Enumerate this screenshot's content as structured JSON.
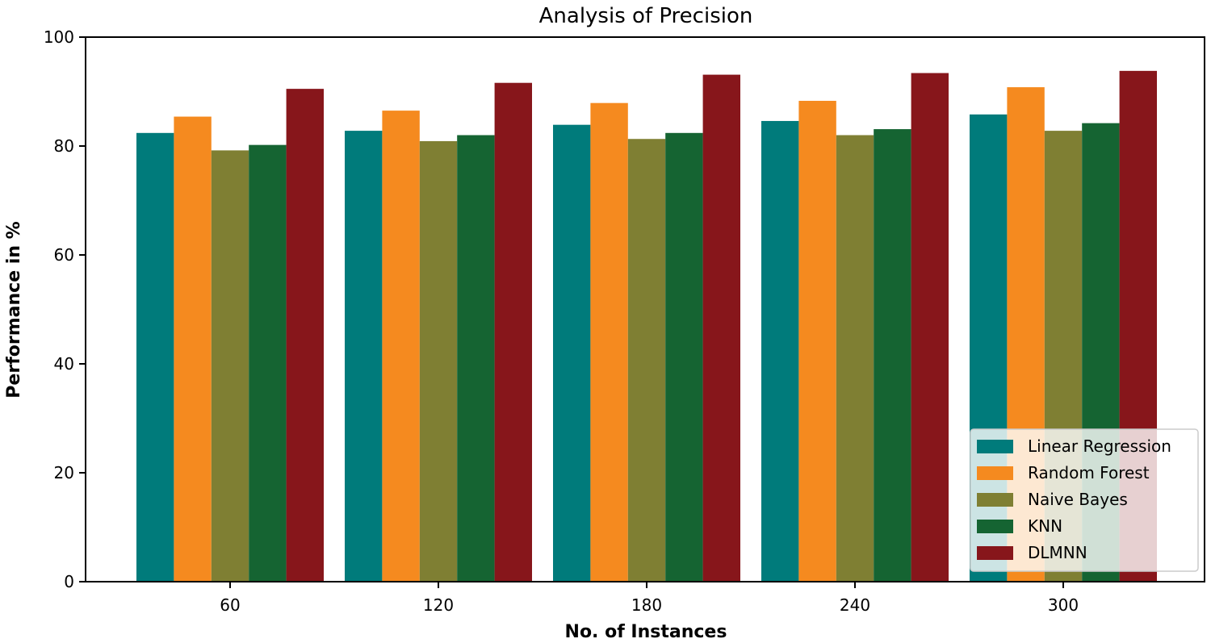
{
  "chart_data": {
    "type": "bar",
    "title": "Analysis of Precision",
    "xlabel": "No. of Instances",
    "ylabel": "Performance in %",
    "categories": [
      "60",
      "120",
      "180",
      "240",
      "300"
    ],
    "ylim": [
      0,
      100
    ],
    "yticks": [
      "0",
      "20",
      "40",
      "60",
      "80",
      "100"
    ],
    "grid": false,
    "legend_position": "bottom-right",
    "series": [
      {
        "name": "Linear Regression",
        "color": "#007b7b",
        "values": [
          82.4,
          82.8,
          83.9,
          84.6,
          85.8
        ]
      },
      {
        "name": "Random Forest",
        "color": "#f58a1f",
        "values": [
          85.4,
          86.5,
          87.9,
          88.3,
          90.8
        ]
      },
      {
        "name": "Naive Bayes",
        "color": "#7f7f33",
        "values": [
          79.2,
          80.9,
          81.3,
          82.0,
          82.8
        ]
      },
      {
        "name": "KNN",
        "color": "#156432",
        "values": [
          80.2,
          82.0,
          82.4,
          83.1,
          84.2
        ]
      },
      {
        "name": "DLMNN",
        "color": "#87161b",
        "values": [
          90.5,
          91.6,
          93.1,
          93.4,
          93.8
        ]
      }
    ]
  }
}
